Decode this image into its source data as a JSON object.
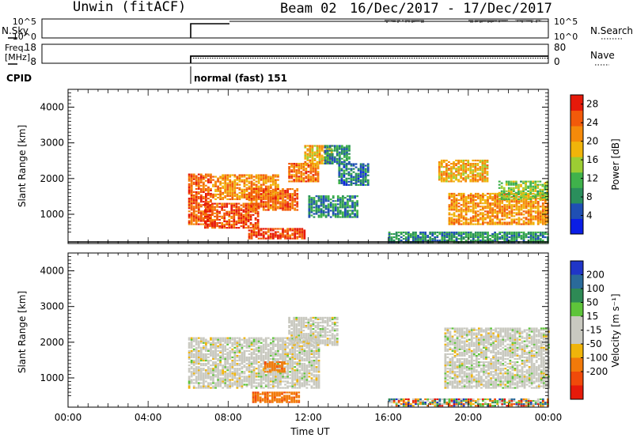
{
  "header": {
    "station": "Unwin (fitACF)",
    "beam": "Beam 02",
    "dates": "16/Dec/2017 - 17/Dec/2017"
  },
  "strips": {
    "nsky": {
      "label": "N.Sky",
      "ticks": [
        "10^5",
        "10^0"
      ]
    },
    "nsearch": {
      "label": "N.Search",
      "ticks": [
        "10^5",
        "10^0"
      ]
    },
    "freq": {
      "label_1": "Freq.",
      "label_2": "[MHz]",
      "ticks": [
        "18",
        "8"
      ]
    },
    "nave": {
      "label": "Nave",
      "ticks": [
        "80",
        "0"
      ]
    },
    "cpid": {
      "label": "CPID",
      "value": "normal (fast) 151"
    }
  },
  "colors": {
    "power": [
      "#0a1ee6",
      "#1f4fb4",
      "#2a8f5c",
      "#3fb24b",
      "#9ccd33",
      "#f0b40a",
      "#f58a0a",
      "#f25a0a",
      "#e61a0a"
    ],
    "velocity": [
      "#2036c8",
      "#2a6a9a",
      "#2e8a55",
      "#5ec43a",
      "#c9c9c0",
      "#c9c9c0",
      "#f0b40a",
      "#f27a0a",
      "#f04a0a",
      "#e61a0a"
    ],
    "velocity_ground": "#c9c9c0"
  },
  "chart_data": [
    {
      "type": "heatmap",
      "name": "power",
      "xlabel": "",
      "ylabel": "Slant Range [km]",
      "xlim": [
        0,
        24
      ],
      "ylim": [
        180,
        4500
      ],
      "yticks": [
        "1000",
        "2000",
        "3000",
        "4000"
      ],
      "xticks": [
        "00:00",
        "04:00",
        "08:00",
        "12:00",
        "16:00",
        "20:00",
        "00:00"
      ],
      "colorbar": {
        "label": "Power [dB]",
        "ticks": [
          "4",
          "8",
          "12",
          "16",
          "20",
          "24",
          "28"
        ],
        "range": [
          0,
          30
        ]
      },
      "regions": [
        {
          "t0": 6.0,
          "t1": 7.2,
          "r0": 700,
          "r1": 2100,
          "level": 26
        },
        {
          "t0": 6.8,
          "t1": 9.5,
          "r0": 600,
          "r1": 1300,
          "level": 27
        },
        {
          "t0": 7.2,
          "t1": 10.5,
          "r0": 1400,
          "r1": 2100,
          "level": 22
        },
        {
          "t0": 9.0,
          "t1": 11.5,
          "r0": 1100,
          "r1": 1700,
          "level": 25
        },
        {
          "t0": 11.0,
          "t1": 12.5,
          "r0": 1900,
          "r1": 2400,
          "level": 24
        },
        {
          "t0": 11.8,
          "t1": 13.2,
          "r0": 2400,
          "r1": 2900,
          "level": 20
        },
        {
          "t0": 12.8,
          "t1": 14.0,
          "r0": 2400,
          "r1": 2900,
          "level": 8
        },
        {
          "t0": 9.0,
          "t1": 11.8,
          "r0": 300,
          "r1": 600,
          "level": 28
        },
        {
          "t0": 12.0,
          "t1": 14.5,
          "r0": 900,
          "r1": 1500,
          "level": 8
        },
        {
          "t0": 13.5,
          "t1": 15.0,
          "r0": 1800,
          "r1": 2400,
          "level": 6
        },
        {
          "t0": 18.5,
          "t1": 21.0,
          "r0": 1900,
          "r1": 2500,
          "level": 20
        },
        {
          "t0": 19.0,
          "t1": 24.0,
          "r0": 700,
          "r1": 1600,
          "level": 22
        },
        {
          "t0": 21.5,
          "t1": 24.0,
          "r0": 1400,
          "r1": 1900,
          "level": 14
        },
        {
          "t0": 16.0,
          "t1": 24.0,
          "r0": 200,
          "r1": 500,
          "level": 8
        }
      ]
    },
    {
      "type": "heatmap",
      "name": "velocity",
      "xlabel": "Time UT",
      "ylabel": "Slant Range [km]",
      "xlim": [
        0,
        24
      ],
      "ylim": [
        180,
        4500
      ],
      "yticks": [
        "1000",
        "2000",
        "3000",
        "4000"
      ],
      "xticks": [
        "00:00",
        "04:00",
        "08:00",
        "12:00",
        "16:00",
        "20:00",
        "00:00"
      ],
      "colorbar": {
        "label": "Velocity [m s⁻¹]",
        "ticks": [
          "200",
          "100",
          "50",
          "15",
          "-15",
          "-50",
          "-100",
          "-200"
        ]
      },
      "regions": [
        {
          "t0": 6.0,
          "t1": 12.5,
          "r0": 700,
          "r1": 2100,
          "kind": "ground"
        },
        {
          "t0": 11.0,
          "t1": 13.5,
          "r0": 1900,
          "r1": 2700,
          "kind": "ground"
        },
        {
          "t0": 9.8,
          "t1": 10.8,
          "r0": 1150,
          "r1": 1450,
          "kind": "neg_fast"
        },
        {
          "t0": 9.2,
          "t1": 11.5,
          "r0": 300,
          "r1": 600,
          "kind": "neg_fast"
        },
        {
          "t0": 18.8,
          "t1": 24.0,
          "r0": 700,
          "r1": 2400,
          "kind": "ground"
        },
        {
          "t0": 16.0,
          "t1": 24.0,
          "r0": 200,
          "r1": 400,
          "kind": "mixed"
        }
      ]
    }
  ]
}
